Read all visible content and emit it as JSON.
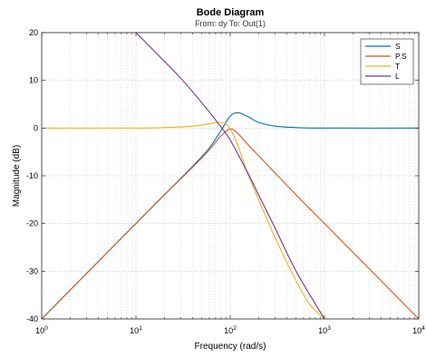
{
  "chart_data": {
    "type": "line",
    "title": "Bode Diagram",
    "subtitle": "From: dy  To: Out(1)",
    "xlabel": "Frequency  (rad/s)",
    "ylabel": "Magnitude (dB)",
    "xscale": "log",
    "xlim": [
      1,
      10000
    ],
    "ylim": [
      -40,
      20
    ],
    "grid": true,
    "legend_position": "top-right",
    "xticks": [
      {
        "value": 1,
        "base": "10",
        "exp": "0"
      },
      {
        "value": 10,
        "base": "10",
        "exp": "1"
      },
      {
        "value": 100,
        "base": "10",
        "exp": "2"
      },
      {
        "value": 1000,
        "base": "10",
        "exp": "3"
      },
      {
        "value": 10000,
        "base": "10",
        "exp": "4"
      }
    ],
    "yticks": [
      20,
      10,
      0,
      -10,
      -20,
      -30,
      -40
    ],
    "series": [
      {
        "name": "S",
        "color": "#0072BD",
        "x": [
          1,
          5,
          10,
          20,
          40,
          60,
          80,
          100,
          120,
          150,
          200,
          300,
          500,
          1000,
          10000
        ],
        "y": [
          -40,
          -26,
          -20,
          -14,
          -8,
          -4.2,
          -0.5,
          2.5,
          3.2,
          2.5,
          1.2,
          0.4,
          0.1,
          0.0,
          0.0
        ]
      },
      {
        "name": "P.S",
        "color": "#D95319",
        "x": [
          1,
          5,
          10,
          20,
          40,
          60,
          80,
          100,
          120,
          150,
          200,
          500,
          1000,
          10000
        ],
        "y": [
          -40,
          -26,
          -20,
          -14,
          -8.2,
          -4.6,
          -1.6,
          -0.2,
          -1.1,
          -3.2,
          -5.8,
          -14,
          -20,
          -40
        ]
      },
      {
        "name": "T",
        "color": "#EDB120",
        "x": [
          1,
          10,
          20,
          40,
          60,
          75,
          90,
          100,
          120,
          150,
          200,
          300,
          500,
          700,
          1000
        ],
        "y": [
          0,
          0,
          0.1,
          0.4,
          0.9,
          1.2,
          0.8,
          -0.2,
          -3.5,
          -9,
          -15,
          -23,
          -32,
          -37,
          -40
        ]
      },
      {
        "name": "L",
        "color": "#7E2F8E",
        "x": [
          10,
          20,
          30,
          50,
          80,
          100,
          150,
          200,
          300,
          500,
          1000
        ],
        "y": [
          20,
          14,
          10.4,
          5.3,
          0.2,
          -2.5,
          -9,
          -14,
          -21,
          -30,
          -40
        ]
      }
    ]
  }
}
